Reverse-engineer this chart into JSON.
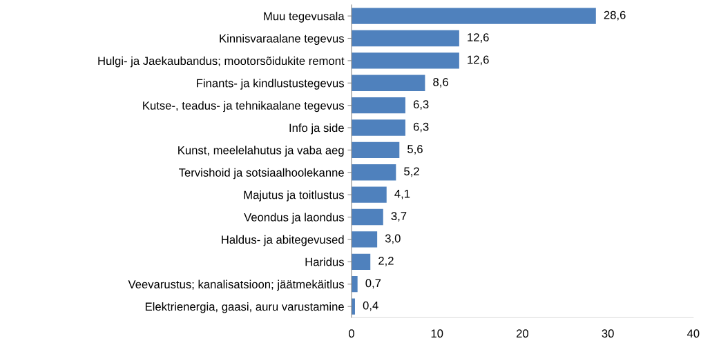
{
  "chart_data": {
    "type": "bar",
    "orientation": "horizontal",
    "categories": [
      "Muu tegevusala",
      "Kinnisvaraalane tegevus",
      "Hulgi- ja Jaekaubandus; mootorsõidukite remont",
      "Finants- ja kindlustustegevus",
      "Kutse-, teadus- ja tehnikaalane tegevus",
      "Info ja side",
      "Kunst, meelelahutus ja vaba aeg",
      "Tervishoid ja sotsiaalhoolekanne",
      "Majutus ja toitlustus",
      "Veondus ja laondus",
      "Haldus- ja abitegevused",
      "Haridus",
      "Veevarustus; kanalisatsioon; jäätmekäitlus",
      "Elektrienergia, gaasi, auru varustamine"
    ],
    "values": [
      28.6,
      12.6,
      12.6,
      8.6,
      6.3,
      6.3,
      5.6,
      5.2,
      4.1,
      3.7,
      3.0,
      2.2,
      0.7,
      0.4
    ],
    "value_labels": [
      "28,6",
      "12,6",
      "12,6",
      "8,6",
      "6,3",
      "6,3",
      "5,6",
      "5,2",
      "4,1",
      "3,7",
      "3,0",
      "2,2",
      "0,7",
      "0,4"
    ],
    "color": "#4f81bd",
    "xlim": [
      0,
      40
    ],
    "xticks": [
      0,
      10,
      20,
      30,
      40
    ],
    "grid": false,
    "legend": false
  }
}
